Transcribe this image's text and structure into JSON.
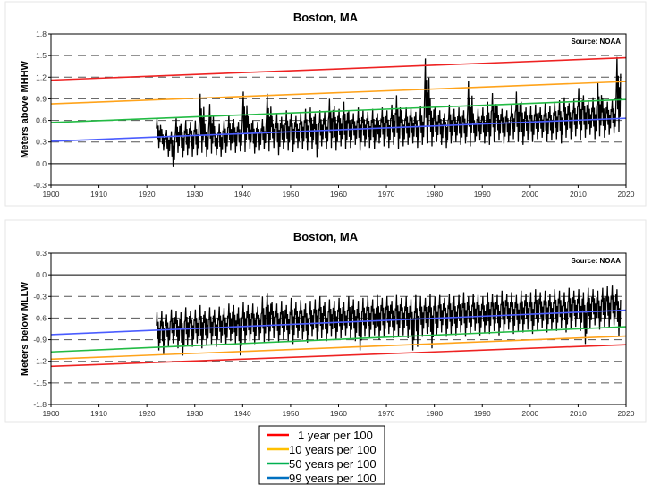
{
  "chart_data": [
    {
      "type": "line",
      "title": "Boston, MA",
      "source": "Source: NOAA",
      "ylabel": "Meters above MHHW",
      "xlabel": "",
      "xlim": [
        1900,
        2020
      ],
      "ylim": [
        -0.3,
        1.8
      ],
      "xticks": [
        "1900",
        "1910",
        "1920",
        "1930",
        "1940",
        "1950",
        "1960",
        "1970",
        "1980",
        "1990",
        "2000",
        "2010",
        "2020"
      ],
      "yticks": [
        "1.8",
        "1.5",
        "1.2",
        "0.9",
        "0.6",
        "0.3",
        "0.0",
        "-0.3"
      ],
      "ytick_values": [
        1.8,
        1.5,
        1.2,
        0.9,
        0.6,
        0.3,
        0.0,
        -0.3
      ],
      "dashed_gridlines": [
        1.5,
        1.2,
        0.9,
        0.6,
        0.3
      ],
      "zero_line": 0.0,
      "trend_lines": [
        {
          "name": "1 year per 100",
          "color": "#ee2222",
          "x": [
            1900,
            2020
          ],
          "y": [
            1.16,
            1.47
          ]
        },
        {
          "name": "10 years per 100",
          "color": "#ffa31a",
          "x": [
            1900,
            2020
          ],
          "y": [
            0.83,
            1.14
          ]
        },
        {
          "name": "50 years per 100",
          "color": "#22bb44",
          "x": [
            1900,
            2020
          ],
          "y": [
            0.57,
            0.89
          ]
        },
        {
          "name": "99 years per 100",
          "color": "#4a5cff",
          "x": [
            1900,
            2020
          ],
          "y": [
            0.31,
            0.63
          ]
        }
      ],
      "series": {
        "name": "monthly extreme water level",
        "start_year": 1922,
        "annual_high": [
          0.63,
          0.48,
          0.47,
          0.45,
          0.63,
          0.55,
          0.6,
          0.58,
          0.6,
          0.97,
          0.55,
          0.83,
          0.52,
          0.55,
          0.6,
          0.68,
          0.62,
          0.58,
          1.0,
          0.66,
          0.6,
          0.58,
          0.62,
          0.97,
          0.66,
          0.7,
          0.65,
          0.74,
          0.7,
          0.66,
          0.72,
          0.76,
          0.78,
          0.7,
          0.74,
          0.72,
          0.9,
          0.8,
          0.76,
          0.86,
          0.73,
          0.7,
          0.78,
          0.74,
          0.72,
          0.76,
          0.7,
          0.78,
          0.74,
          0.82,
          0.95,
          0.74,
          0.78,
          0.76,
          0.72,
          0.8,
          1.46,
          0.9,
          0.78,
          0.74,
          0.7,
          0.82,
          0.76,
          0.78,
          0.74,
          1.15,
          0.7,
          0.76,
          0.78,
          0.86,
          0.98,
          0.8,
          0.76,
          0.74,
          0.82,
          1.0,
          0.86,
          0.78,
          0.8,
          0.82,
          0.78,
          0.84,
          0.8,
          0.86,
          0.88,
          0.92,
          0.84,
          0.9,
          1.05,
          0.95,
          0.88,
          0.92,
          1.12,
          0.9,
          0.86,
          0.88,
          1.48
        ],
        "annual_low": [
          0.22,
          0.18,
          0.1,
          -0.05,
          0.15,
          0.08,
          0.12,
          0.1,
          0.12,
          0.15,
          0.1,
          0.14,
          0.12,
          0.1,
          0.15,
          0.18,
          0.15,
          0.17,
          0.16,
          0.2,
          0.14,
          0.18,
          0.2,
          0.17,
          0.22,
          0.12,
          0.2,
          0.18,
          0.16,
          0.22,
          0.2,
          0.18,
          0.2,
          0.08,
          0.24,
          0.2,
          0.22,
          0.18,
          0.24,
          0.2,
          0.22,
          0.26,
          0.18,
          0.24,
          0.22,
          0.2,
          0.28,
          0.24,
          0.22,
          0.26,
          0.2,
          0.24,
          0.26,
          0.28,
          0.22,
          0.26,
          0.28,
          0.24,
          0.3,
          0.26,
          0.22,
          0.28,
          0.3,
          0.26,
          0.28,
          0.24,
          0.3,
          0.32,
          0.28,
          0.26,
          0.3,
          0.32,
          0.28,
          0.3,
          0.34,
          0.3,
          0.26,
          0.32,
          0.3,
          0.34,
          0.36,
          0.3,
          0.32,
          0.34,
          0.28,
          0.36,
          0.34,
          0.38,
          0.32,
          0.36,
          0.4,
          0.34,
          0.38,
          0.36,
          0.4,
          0.42,
          0.44
        ]
      }
    },
    {
      "type": "line",
      "title": "Boston, MA",
      "source": "Source: NOAA",
      "ylabel": "Meters below MLLW",
      "xlabel": "",
      "xlim": [
        1900,
        2020
      ],
      "ylim": [
        -1.8,
        0.3
      ],
      "xticks": [
        "1900",
        "1910",
        "1920",
        "1930",
        "1940",
        "1950",
        "1960",
        "1970",
        "1980",
        "1990",
        "2000",
        "2010",
        "2020"
      ],
      "yticks": [
        "0.3",
        "0.0",
        "-0.3",
        "-0.6",
        "-0.9",
        "-1.2",
        "-1.5",
        "-1.8"
      ],
      "ytick_values": [
        0.3,
        0.0,
        -0.3,
        -0.6,
        -0.9,
        -1.2,
        -1.5,
        -1.8
      ],
      "dashed_gridlines": [
        -0.3,
        -0.6,
        -0.9,
        -1.2,
        -1.5
      ],
      "zero_line": 0.0,
      "trend_lines": [
        {
          "name": "1 year per 100",
          "color": "#ee2222",
          "x": [
            1900,
            2020
          ],
          "y": [
            -1.27,
            -0.97
          ]
        },
        {
          "name": "10 years per 100",
          "color": "#ffa31a",
          "x": [
            1900,
            2020
          ],
          "y": [
            -1.17,
            -0.85
          ]
        },
        {
          "name": "50 years per 100",
          "color": "#22bb44",
          "x": [
            1900,
            2020
          ],
          "y": [
            -1.07,
            -0.72
          ]
        },
        {
          "name": "99 years per 100",
          "color": "#4a5cff",
          "x": [
            1900,
            2020
          ],
          "y": [
            -0.83,
            -0.49
          ]
        }
      ],
      "series": {
        "name": "monthly extreme water level",
        "start_year": 1922,
        "annual_high": [
          -0.52,
          -0.5,
          -0.55,
          -0.48,
          -0.5,
          -0.52,
          -0.45,
          -0.5,
          -0.48,
          -0.42,
          -0.5,
          -0.45,
          -0.48,
          -0.44,
          -0.46,
          -0.4,
          -0.42,
          -0.45,
          -0.38,
          -0.42,
          -0.4,
          -0.44,
          -0.3,
          -0.25,
          -0.38,
          -0.4,
          -0.36,
          -0.42,
          -0.32,
          -0.38,
          -0.35,
          -0.4,
          -0.36,
          -0.34,
          -0.3,
          -0.38,
          -0.34,
          -0.36,
          -0.32,
          -0.38,
          -0.3,
          -0.34,
          -0.36,
          -0.32,
          -0.3,
          -0.34,
          -0.28,
          -0.32,
          -0.3,
          -0.36,
          -0.28,
          -0.32,
          -0.3,
          -0.34,
          -0.28,
          -0.3,
          -0.32,
          -0.26,
          -0.3,
          -0.28,
          -0.32,
          -0.26,
          -0.3,
          -0.28,
          -0.24,
          -0.3,
          -0.26,
          -0.28,
          -0.3,
          -0.24,
          -0.26,
          -0.28,
          -0.22,
          -0.26,
          -0.24,
          -0.28,
          -0.22,
          -0.26,
          -0.24,
          -0.2,
          -0.24,
          -0.22,
          -0.26,
          -0.2,
          -0.22,
          -0.24,
          -0.18,
          -0.22,
          -0.2,
          -0.24,
          -0.18,
          -0.2,
          -0.22,
          -0.18,
          -0.16,
          -0.15,
          -0.2
        ],
        "annual_low": [
          -1.05,
          -1.1,
          -1.0,
          -0.95,
          -1.02,
          -1.12,
          -0.98,
          -1.0,
          -0.95,
          -1.02,
          -0.98,
          -0.96,
          -1.0,
          -0.94,
          -0.98,
          -0.92,
          -0.96,
          -1.12,
          -0.95,
          -0.92,
          -0.96,
          -0.9,
          -0.94,
          -0.92,
          -0.88,
          -0.94,
          -0.9,
          -0.92,
          -0.96,
          -0.88,
          -0.9,
          -0.94,
          -0.86,
          -0.9,
          -0.88,
          -0.92,
          -0.86,
          -0.9,
          -0.88,
          -0.84,
          -0.88,
          -0.92,
          -1.05,
          -0.86,
          -0.88,
          -0.84,
          -0.9,
          -0.86,
          -0.82,
          -0.88,
          -0.86,
          -0.84,
          -0.88,
          -1.05,
          -1.0,
          -0.86,
          -0.82,
          -1.02,
          -0.84,
          -0.8,
          -0.86,
          -0.82,
          -0.84,
          -0.8,
          -0.86,
          -0.82,
          -0.78,
          -0.84,
          -0.8,
          -0.82,
          -0.78,
          -0.84,
          -0.8,
          -0.76,
          -0.82,
          -0.78,
          -0.8,
          -0.76,
          -0.82,
          -0.78,
          -0.74,
          -0.8,
          -0.76,
          -0.78,
          -0.74,
          -0.8,
          -0.76,
          -0.72,
          -0.78,
          -0.96,
          -0.74,
          -0.7,
          -0.76,
          -0.72,
          -0.74,
          -0.7,
          -0.85
        ]
      }
    }
  ],
  "legend": {
    "placement": "bottom-center",
    "items": [
      {
        "label": "1 year per 100",
        "color": "#ff0000"
      },
      {
        "label": "10 years per 100",
        "color": "#ffc000"
      },
      {
        "label": "50 years per 100",
        "color": "#00b050"
      },
      {
        "label": "99 years per 100",
        "color": "#0070c0"
      }
    ]
  }
}
